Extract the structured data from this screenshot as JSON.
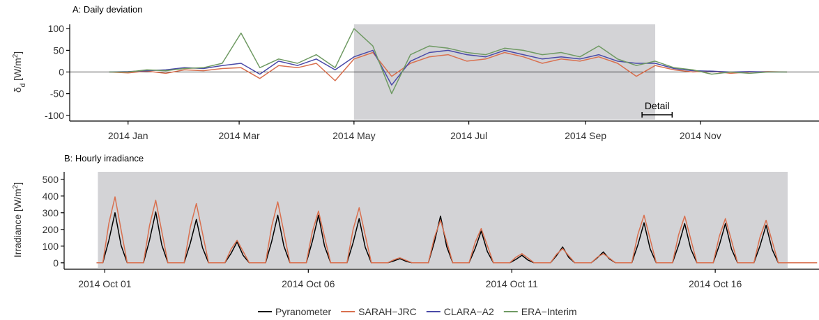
{
  "chart_data": [
    {
      "type": "line",
      "title": "A: Daily deviation",
      "ylabel": [
        "δ",
        "d",
        " [W/m",
        "2",
        "]"
      ],
      "x": [
        -10,
        0,
        10,
        20,
        30,
        40,
        50,
        60,
        70,
        80,
        90,
        100,
        110,
        120,
        130,
        140,
        150,
        160,
        170,
        180,
        190,
        200,
        210,
        220,
        230,
        240,
        250,
        260,
        270,
        280,
        290,
        300,
        310,
        320,
        330,
        340,
        350
      ],
      "series": [
        {
          "name": "SARAH−JRC",
          "color": "#d9704f",
          "values": [
            0,
            -2,
            2,
            -3,
            5,
            3,
            8,
            10,
            -15,
            15,
            10,
            20,
            -20,
            30,
            45,
            -10,
            20,
            35,
            40,
            25,
            30,
            45,
            35,
            20,
            30,
            25,
            35,
            20,
            -10,
            15,
            5,
            0,
            2,
            -3,
            0,
            1,
            0
          ]
        },
        {
          "name": "CLARA−A2",
          "color": "#4a4aa8",
          "values": [
            0,
            1,
            3,
            5,
            10,
            8,
            15,
            20,
            -5,
            25,
            15,
            30,
            5,
            35,
            50,
            -30,
            25,
            45,
            50,
            40,
            35,
            50,
            40,
            30,
            35,
            30,
            40,
            25,
            20,
            20,
            8,
            3,
            2,
            0,
            1,
            0,
            0
          ]
        },
        {
          "name": "ERA−Interim",
          "color": "#6f9a63",
          "values": [
            0,
            0,
            5,
            3,
            8,
            10,
            20,
            90,
            10,
            30,
            20,
            40,
            10,
            100,
            60,
            -50,
            40,
            60,
            55,
            45,
            40,
            55,
            50,
            40,
            45,
            35,
            60,
            30,
            15,
            25,
            10,
            5,
            -5,
            0,
            -3,
            0,
            0
          ]
        }
      ],
      "xlim": [
        -31,
        367
      ],
      "xticks": [
        {
          "value": 0,
          "label": "2014 Jan"
        },
        {
          "value": 59,
          "label": "2014 Mar"
        },
        {
          "value": 120,
          "label": "2014 May"
        },
        {
          "value": 181,
          "label": "2014 Jul"
        },
        {
          "value": 243,
          "label": "2014 Sep"
        },
        {
          "value": 304,
          "label": "2014 Nov"
        }
      ],
      "ylim": [
        -110,
        110
      ],
      "yticks": [
        -100,
        -50,
        0,
        50,
        100
      ],
      "shaded": [
        120,
        280
      ],
      "reference_line": 0,
      "detail": {
        "label": "Detail",
        "span": [
          273,
          289
        ]
      }
    },
    {
      "type": "line",
      "title": "B: Hourly irradiance",
      "ylabel": [
        "Irradiance [W/m",
        "2",
        "]"
      ],
      "x": [
        -0.2,
        -0.05,
        0.1,
        0.25,
        0.4,
        0.55,
        0.95,
        1.1,
        1.25,
        1.4,
        1.55,
        1.95,
        2.1,
        2.25,
        2.4,
        2.55,
        2.95,
        3.1,
        3.25,
        3.4,
        3.55,
        3.95,
        4.1,
        4.25,
        4.4,
        4.55,
        4.95,
        5.1,
        5.25,
        5.4,
        5.55,
        5.95,
        6.1,
        6.25,
        6.4,
        6.55,
        6.95,
        7.1,
        7.25,
        7.4,
        7.55,
        7.95,
        8.1,
        8.25,
        8.4,
        8.55,
        8.95,
        9.1,
        9.25,
        9.4,
        9.55,
        9.95,
        10.1,
        10.25,
        10.4,
        10.55,
        10.95,
        11.1,
        11.25,
        11.4,
        11.55,
        11.95,
        12.1,
        12.25,
        12.4,
        12.55,
        12.95,
        13.1,
        13.25,
        13.4,
        13.55,
        13.95,
        14.1,
        14.25,
        14.4,
        14.55,
        14.95,
        15.1,
        15.25,
        15.4,
        15.55,
        15.95,
        16.1,
        16.25,
        16.4,
        16.55,
        17.5
      ],
      "series": [
        {
          "name": "Pyranometer",
          "color": "#000000",
          "values": [
            0,
            0,
            135,
            300,
            105,
            0,
            0,
            137,
            305,
            107,
            0,
            0,
            117,
            260,
            91,
            0,
            0,
            56,
            125,
            44,
            0,
            0,
            128,
            285,
            100,
            0,
            0,
            128,
            285,
            100,
            0,
            0,
            119,
            265,
            93,
            0,
            0,
            11,
            25,
            9,
            0,
            0,
            126,
            280,
            98,
            0,
            0,
            86,
            190,
            67,
            0,
            0,
            20,
            45,
            16,
            0,
            0,
            43,
            95,
            33,
            0,
            0,
            29,
            65,
            23,
            0,
            0,
            108,
            240,
            84,
            0,
            0,
            106,
            235,
            82,
            0,
            0,
            106,
            235,
            82,
            0,
            0,
            101,
            225,
            79,
            0,
            0
          ]
        },
        {
          "name": "SARAH−JRC",
          "color": "#d9704f",
          "values": [
            0,
            0,
            237,
            395,
            198,
            0,
            0,
            225,
            375,
            188,
            0,
            0,
            213,
            355,
            178,
            0,
            0,
            81,
            135,
            68,
            0,
            0,
            219,
            365,
            183,
            0,
            0,
            186,
            310,
            155,
            0,
            0,
            198,
            330,
            165,
            0,
            0,
            18,
            30,
            15,
            0,
            0,
            153,
            255,
            128,
            0,
            0,
            123,
            205,
            103,
            0,
            0,
            33,
            55,
            28,
            0,
            0,
            51,
            85,
            43,
            0,
            0,
            33,
            55,
            28,
            0,
            0,
            171,
            285,
            143,
            0,
            0,
            168,
            280,
            140,
            0,
            0,
            159,
            265,
            133,
            0,
            0,
            153,
            255,
            128,
            0,
            0
          ]
        }
      ],
      "xlim": [
        -1.0,
        17.55
      ],
      "xticks": [
        {
          "value": 0,
          "label": "2014 Oct 01"
        },
        {
          "value": 5,
          "label": "2014 Oct 06"
        },
        {
          "value": 10,
          "label": "2014 Oct 11"
        },
        {
          "value": 15,
          "label": "2014 Oct 16"
        }
      ],
      "ylim": [
        -30,
        545
      ],
      "yticks": [
        0,
        100,
        200,
        300,
        400,
        500
      ],
      "shaded": [
        -0.17,
        16.78
      ]
    }
  ]
}
